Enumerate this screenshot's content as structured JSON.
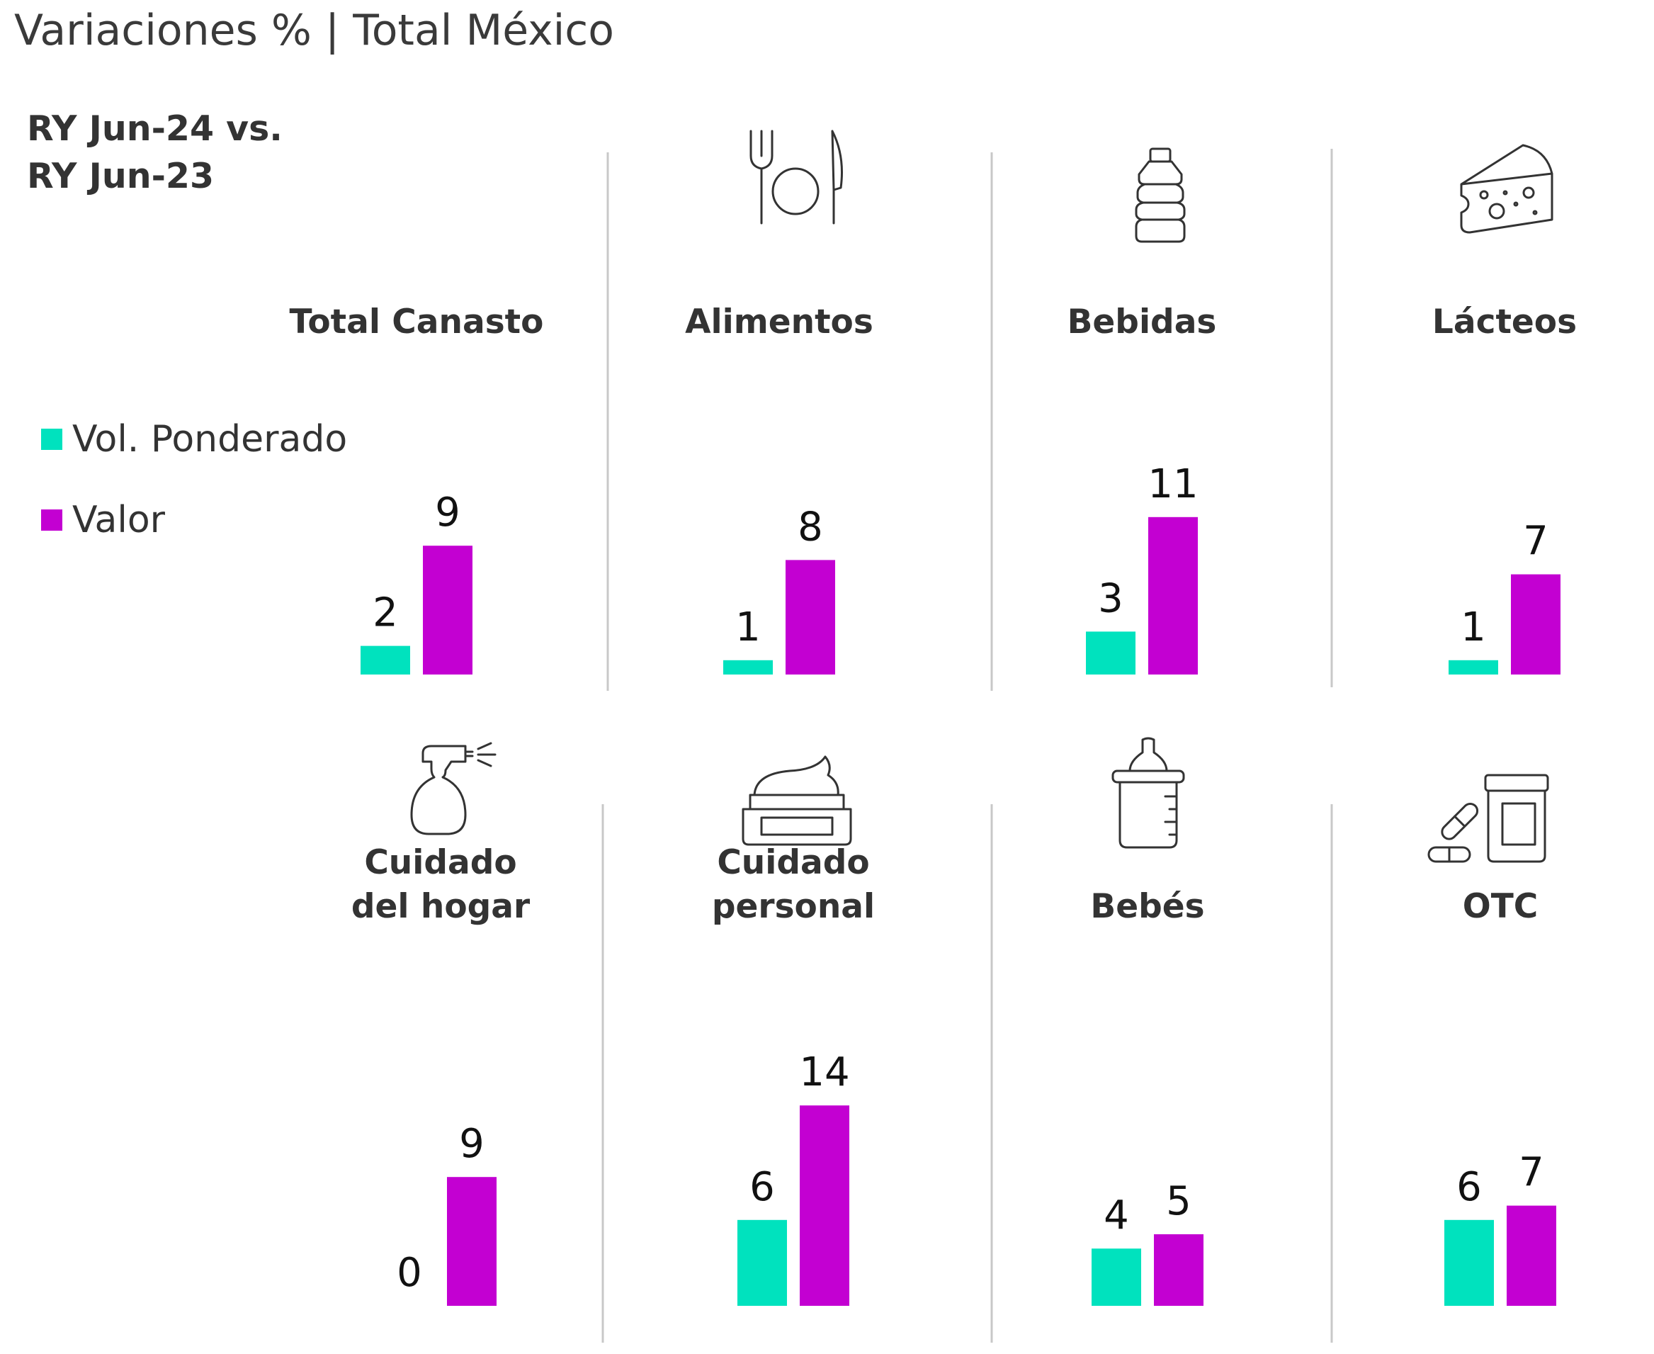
{
  "header": {
    "title": "Variaciones % | Total México",
    "subtitle_line1": "RY Jun-24 vs.",
    "subtitle_line2": "RY Jun-23"
  },
  "legend": {
    "vol_label": "Vol. Ponderado",
    "valor_label": "Valor"
  },
  "colors": {
    "vol": "#00E2BE",
    "valor": "#C300D2",
    "divider": "#c8c8c8",
    "text": "#333333"
  },
  "icons": [
    "plate-fork-knife-icon",
    "bottle-icon",
    "cheese-icon",
    "spray-bottle-icon",
    "cream-jar-icon",
    "baby-bottle-icon",
    "pill-jar-icon"
  ],
  "chart_data": {
    "type": "bar",
    "title": "Variaciones % | Total México",
    "subtitle": "RY Jun-24 vs. RY Jun-23",
    "series_names": [
      "Vol. Ponderado",
      "Valor"
    ],
    "categories": [
      {
        "name_lines": [
          "Total Canasto"
        ],
        "vol": 2,
        "valor": 9
      },
      {
        "name_lines": [
          "Alimentos"
        ],
        "vol": 1,
        "valor": 8
      },
      {
        "name_lines": [
          "Bebidas"
        ],
        "vol": 3,
        "valor": 11
      },
      {
        "name_lines": [
          "Lácteos"
        ],
        "vol": 1,
        "valor": 7
      },
      {
        "name_lines": [
          "Cuidado",
          "del hogar"
        ],
        "vol": 0,
        "valor": 9
      },
      {
        "name_lines": [
          "Cuidado",
          "personal"
        ],
        "vol": 6,
        "valor": 14
      },
      {
        "name_lines": [
          "Bebés"
        ],
        "vol": 4,
        "valor": 5
      },
      {
        "name_lines": [
          "OTC"
        ],
        "vol": 6,
        "valor": 7
      }
    ]
  }
}
